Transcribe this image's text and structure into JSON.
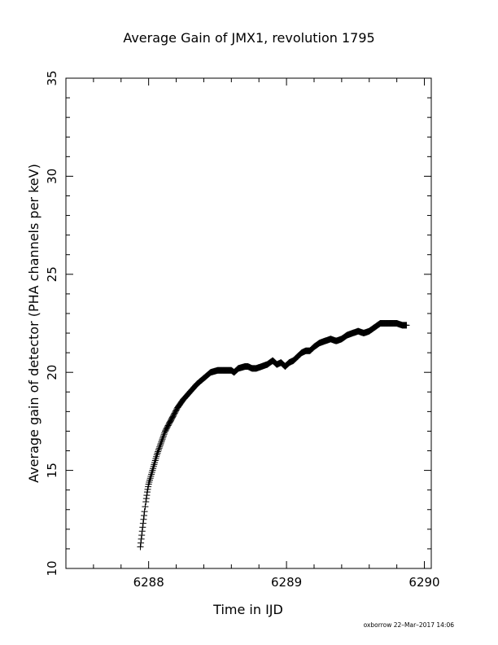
{
  "chart_data": {
    "type": "scatter",
    "title": "Average Gain of JMX1, revolution 1795",
    "xlabel": "Time in IJD",
    "ylabel": "Average gain of detector (PHA channels per keV)",
    "xlim": [
      6287.4,
      6290.05
    ],
    "ylim": [
      10,
      35
    ],
    "xticks": [
      6288,
      6289,
      6290
    ],
    "xtick_labels": [
      "6288",
      "6289",
      "6290"
    ],
    "yticks": [
      10,
      15,
      20,
      25,
      30,
      35
    ],
    "ytick_labels": [
      "10",
      "15",
      "20",
      "25",
      "30",
      "35"
    ],
    "marker": "plus",
    "grid": false,
    "color": "#000000",
    "series": [
      {
        "x": [
          6287.94,
          6287.95,
          6287.96,
          6287.97,
          6287.98,
          6287.99,
          6288.0,
          6288.02,
          6288.04,
          6288.06,
          6288.08,
          6288.1,
          6288.12,
          6288.15,
          6288.18,
          6288.21,
          6288.25,
          6288.3,
          6288.35,
          6288.4,
          6288.45,
          6288.5,
          6288.55,
          6288.6,
          6288.62,
          6288.65,
          6288.7,
          6288.72,
          6288.75,
          6288.78,
          6288.82,
          6288.86,
          6288.9,
          6288.93,
          6288.96,
          6288.99,
          6289.02,
          6289.05,
          6289.08,
          6289.11,
          6289.14,
          6289.17,
          6289.2,
          6289.24,
          6289.28,
          6289.32,
          6289.36,
          6289.4,
          6289.44,
          6289.48,
          6289.52,
          6289.56,
          6289.6,
          6289.64,
          6289.68,
          6289.72,
          6289.76,
          6289.8,
          6289.84,
          6289.87
        ],
        "y": [
          11.1,
          11.7,
          12.3,
          12.9,
          13.4,
          13.9,
          14.3,
          14.8,
          15.3,
          15.8,
          16.2,
          16.6,
          17.0,
          17.4,
          17.8,
          18.2,
          18.6,
          19.0,
          19.4,
          19.7,
          20.0,
          20.1,
          20.1,
          20.1,
          20.0,
          20.2,
          20.3,
          20.3,
          20.2,
          20.2,
          20.3,
          20.4,
          20.6,
          20.4,
          20.5,
          20.3,
          20.5,
          20.6,
          20.8,
          21.0,
          21.1,
          21.1,
          21.3,
          21.5,
          21.6,
          21.7,
          21.6,
          21.7,
          21.9,
          22.0,
          22.1,
          22.0,
          22.1,
          22.3,
          22.5,
          22.5,
          22.5,
          22.5,
          22.4,
          22.4
        ]
      }
    ]
  },
  "footer": "oxborrow 22–Mar–2017 14:06"
}
